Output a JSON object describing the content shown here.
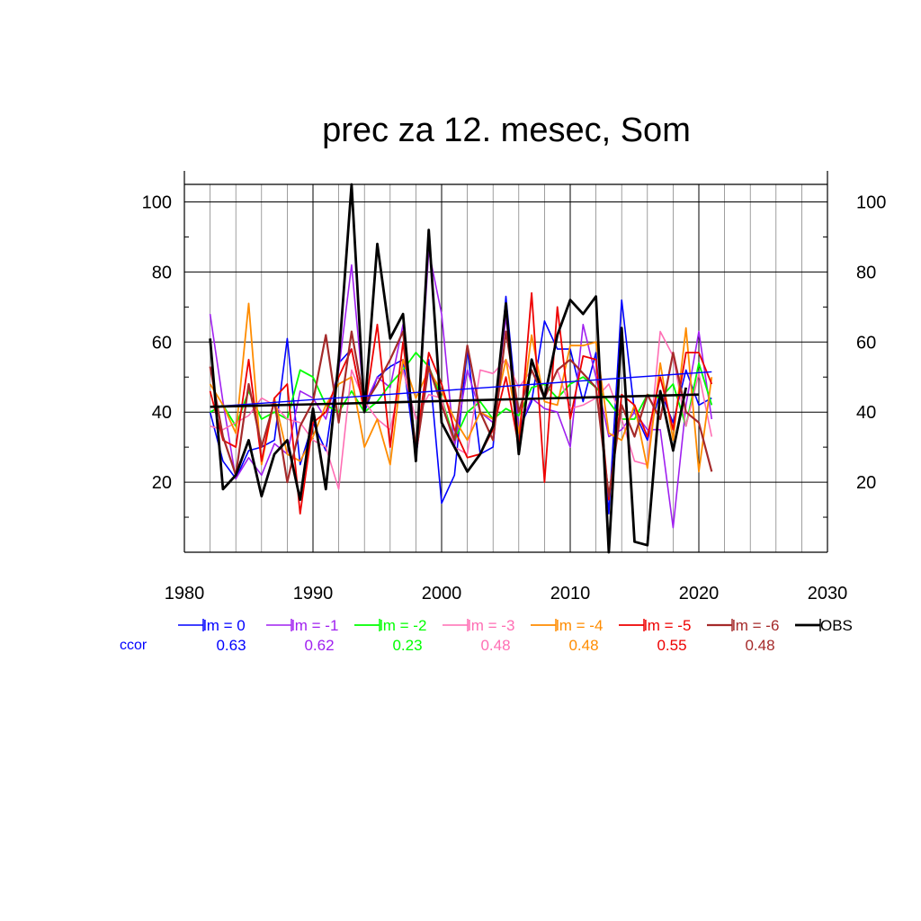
{
  "chart_data": {
    "type": "line",
    "title": "prec za 12. mesec, Som",
    "xlabel": "",
    "ylabel": "",
    "xlim": [
      1980,
      2030
    ],
    "ylim": [
      0,
      105
    ],
    "x_ticks": [
      1980,
      1990,
      2000,
      2010,
      2020,
      2030
    ],
    "y_ticks": [
      20,
      40,
      60,
      80,
      100
    ],
    "grid": true,
    "legend_position": "bottom",
    "ccor_label": "ccor",
    "x": [
      1982,
      1983,
      1984,
      1985,
      1986,
      1987,
      1988,
      1989,
      1990,
      1991,
      1992,
      1993,
      1994,
      1995,
      1996,
      1997,
      1998,
      1999,
      2000,
      2001,
      2002,
      2003,
      2004,
      2005,
      2006,
      2007,
      2008,
      2009,
      2010,
      2011,
      2012,
      2013,
      2014,
      2015,
      2016,
      2017,
      2018,
      2019,
      2020,
      2021
    ],
    "series": [
      {
        "name": "lm = 0",
        "color": "#0000ff",
        "ccor": "0.63",
        "width": 1.6,
        "values": [
          40,
          26,
          21,
          29,
          30,
          32,
          61,
          25,
          37,
          29,
          54,
          58,
          40,
          50,
          53,
          55,
          27,
          55,
          14,
          22,
          58,
          28,
          30,
          73,
          35,
          43,
          66,
          58,
          58,
          43,
          57,
          11,
          72,
          40,
          32,
          46,
          37,
          52,
          42,
          44
        ],
        "trend": [
          [
            1982,
            41.5
          ],
          [
            2021,
            51.5
          ]
        ]
      },
      {
        "name": "lm = -1",
        "color": "#a020f0",
        "ccor": "0.62",
        "width": 1.6,
        "values": [
          68,
          43,
          21,
          27,
          22,
          31,
          28,
          46,
          44,
          38,
          52,
          82,
          42,
          50,
          47,
          65,
          28,
          86,
          68,
          30,
          52,
          40,
          37,
          67,
          35,
          44,
          41,
          40,
          30,
          65,
          50,
          33,
          35,
          40,
          35,
          35,
          7,
          42,
          63,
          38
        ]
      },
      {
        "name": "lm = -2",
        "color": "#00ff00",
        "ccor": "0.23",
        "width": 1.8,
        "values": [
          40,
          42,
          36,
          46,
          38,
          40,
          38,
          52,
          50,
          42,
          40,
          46,
          40,
          43,
          48,
          52,
          57,
          53,
          44,
          32,
          40,
          43,
          38,
          41,
          39,
          47,
          48,
          44,
          48,
          50,
          47,
          43,
          38,
          38,
          45,
          44,
          48,
          36,
          54,
          42
        ]
      },
      {
        "name": "lm = -3",
        "color": "#ff6eb4",
        "ccor": "0.48",
        "width": 1.6,
        "values": [
          36,
          35,
          37,
          39,
          44,
          42,
          38,
          37,
          32,
          30,
          18,
          52,
          43,
          38,
          35,
          52,
          38,
          45,
          44,
          30,
          28,
          52,
          51,
          55,
          47,
          52,
          44,
          52,
          41,
          42,
          44,
          48,
          38,
          26,
          25,
          63,
          56,
          36,
          51,
          33
        ]
      },
      {
        "name": "lm = -4",
        "color": "#ff8c00",
        "ccor": "0.48",
        "width": 1.8,
        "values": [
          48,
          42,
          34,
          71,
          25,
          44,
          28,
          26,
          33,
          42,
          48,
          50,
          30,
          38,
          25,
          55,
          44,
          52,
          46,
          38,
          32,
          40,
          38,
          55,
          34,
          62,
          43,
          42,
          59,
          59,
          60,
          34,
          32,
          42,
          24,
          54,
          32,
          64,
          23,
          50
        ]
      },
      {
        "name": "lm = -5",
        "color": "#ee0000",
        "ccor": "0.55",
        "width": 1.8,
        "values": [
          46,
          32,
          30,
          55,
          26,
          44,
          48,
          11,
          37,
          40,
          50,
          58,
          40,
          65,
          30,
          60,
          30,
          57,
          48,
          35,
          27,
          28,
          35,
          50,
          30,
          74,
          20,
          70,
          38,
          56,
          55,
          15,
          45,
          42,
          33,
          50,
          35,
          57,
          57,
          48
        ]
      },
      {
        "name": "lm = -6",
        "color": "#a52a2a",
        "ccor": "0.48",
        "width": 2.2,
        "values": [
          53,
          33,
          22,
          48,
          30,
          43,
          20,
          36,
          43,
          62,
          37,
          63,
          42,
          48,
          55,
          63,
          28,
          53,
          42,
          32,
          59,
          40,
          32,
          63,
          40,
          52,
          44,
          52,
          55,
          51,
          47,
          16,
          42,
          33,
          45,
          38,
          57,
          40,
          37,
          23
        ]
      },
      {
        "name": "OBS",
        "color": "#000000",
        "ccor": "",
        "width": 2.8,
        "values": [
          61,
          18,
          22,
          32,
          16,
          28,
          32,
          15,
          41,
          18,
          55,
          105,
          40,
          88,
          61,
          68,
          26,
          92,
          37,
          30,
          23,
          28,
          36,
          71,
          28,
          55,
          44,
          62,
          72,
          68,
          73,
          0,
          64,
          3,
          2,
          46,
          29,
          47,
          null,
          null
        ],
        "trend": [
          [
            1982,
            41.5
          ],
          [
            2020,
            45
          ]
        ]
      }
    ]
  }
}
